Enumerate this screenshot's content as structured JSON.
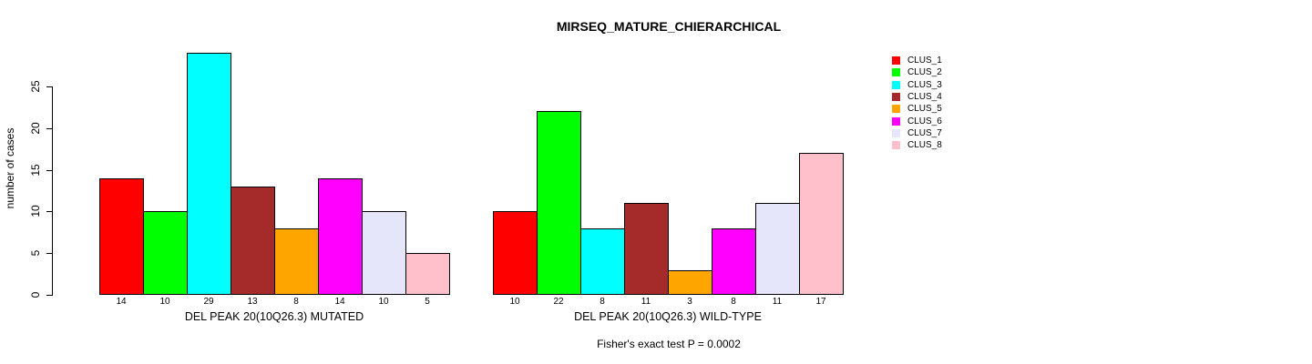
{
  "chart_data": {
    "type": "bar",
    "title": "MIRSEQ_MATURE_CHIERARCHICAL",
    "ylabel": "number of cases",
    "xlabel": "",
    "categories": [
      "DEL PEAK 20(10Q26.3) MUTATED",
      "DEL PEAK 20(10Q26.3) WILD-TYPE"
    ],
    "series": [
      {
        "name": "CLUS_1",
        "color": "#FF0000",
        "values": [
          14,
          10
        ]
      },
      {
        "name": "CLUS_2",
        "color": "#00FF00",
        "values": [
          10,
          22
        ]
      },
      {
        "name": "CLUS_3",
        "color": "#00FFFF",
        "values": [
          29,
          8
        ]
      },
      {
        "name": "CLUS_4",
        "color": "#A52A2A",
        "values": [
          13,
          11
        ]
      },
      {
        "name": "CLUS_5",
        "color": "#FFA500",
        "values": [
          8,
          3
        ]
      },
      {
        "name": "CLUS_6",
        "color": "#FF00FF",
        "values": [
          14,
          8
        ]
      },
      {
        "name": "CLUS_7",
        "color": "#E6E6FA",
        "values": [
          10,
          11
        ]
      },
      {
        "name": "CLUS_8",
        "color": "#FFC0CB",
        "values": [
          5,
          17
        ]
      }
    ],
    "yticks": [
      0,
      5,
      10,
      15,
      20,
      25
    ],
    "ylim": [
      0,
      29
    ],
    "grid": false,
    "legend_position": "right",
    "bar_border_color": "#000000",
    "annotation": "Fisher's exact test P = 0.0002"
  }
}
